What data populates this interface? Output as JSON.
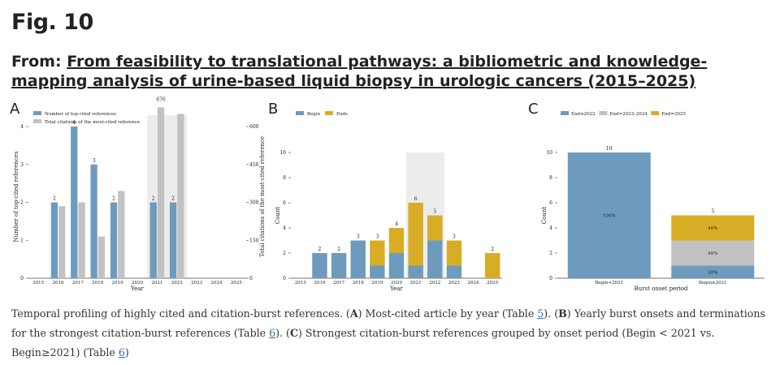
{
  "figure": {
    "title": "Fig. 10",
    "from_label": "From: ",
    "article_title": "From feasibility to translational pathways: a bibliometric and knowledge-mapping analysis of urine-based liquid biopsy in urologic cancers (2015–2025)"
  },
  "caption": {
    "text1": "Temporal profiling of highly cited and citation-burst references. (",
    "A": "A",
    "text2": ") Most-cited article by year (Table ",
    "t5": "5",
    "text3": "). (",
    "B": "B",
    "text4": ") Yearly burst onsets and terminations for the strongest citation-burst references (Table ",
    "t6a": "6",
    "text5": "). (",
    "C": "C",
    "text6": ") Strongest citation-burst references grouped by onset period (Begin < 2021 vs. Begin≥2021) (Table ",
    "t6b": "6",
    "text7": ")"
  },
  "colors": {
    "blue": "#6e9bbd",
    "gold": "#d8ad26",
    "grey": "#c2c2c2",
    "highlight": "#ececec"
  },
  "chart_data": [
    {
      "panel": "A",
      "type": "bar",
      "categories": [
        "2015",
        "2016",
        "2017",
        "2018",
        "2019",
        "2020",
        "2021",
        "2022",
        "2023",
        "2024",
        "2025"
      ],
      "series": [
        {
          "name": "Number of top-cited references",
          "values": [
            0,
            2,
            4,
            3,
            2,
            0,
            2,
            2,
            0,
            0,
            0
          ],
          "axis": "left"
        },
        {
          "name": "Total citations of the most-cited reference",
          "values": [
            0,
            285,
            300,
            165,
            345,
            0,
            676,
            650,
            0,
            0,
            0
          ],
          "axis": "right"
        }
      ],
      "labels": [
        "",
        "2",
        "4",
        "3",
        "2",
        "",
        "2",
        "2",
        "",
        "",
        ""
      ],
      "top_label": "676",
      "xlabel": "Year",
      "ylabel": "Number of top-cited references",
      "ylabel_right": "Total citations of the most-cited reference",
      "ylim": [
        0,
        4.3
      ],
      "ylim_right": [
        0,
        645
      ],
      "yticks": [
        "0",
        "1",
        "2",
        "3",
        "4"
      ],
      "yticks_right": [
        "0",
        "150",
        "300",
        "450",
        "600"
      ],
      "highlight": [
        "2021",
        "2022"
      ]
    },
    {
      "panel": "B",
      "type": "bar",
      "categories": [
        "2015",
        "2016",
        "2017",
        "2018",
        "2019",
        "2020",
        "2021",
        "2022",
        "2023",
        "2024",
        "2025"
      ],
      "series": [
        {
          "name": "Begin",
          "values": [
            0,
            2,
            2,
            3,
            1,
            2,
            1,
            3,
            1,
            0,
            0
          ]
        },
        {
          "name": "Ends",
          "values": [
            0,
            0,
            0,
            0,
            2,
            2,
            5,
            2,
            2,
            0,
            2
          ]
        }
      ],
      "labels": [
        "",
        "2",
        "2",
        "3",
        "3",
        "4",
        "6",
        "5",
        "3",
        "",
        "2"
      ],
      "xlabel": "Year",
      "ylabel": "Count",
      "ylim": [
        0,
        10
      ],
      "yticks": [
        "0",
        "2",
        "4",
        "6",
        "8",
        "10"
      ],
      "highlight": [
        "2021",
        "2022"
      ]
    },
    {
      "panel": "C",
      "type": "bar",
      "categories": [
        "Begin<2021",
        "Begin≥2021"
      ],
      "series": [
        {
          "name": "End≤2022",
          "values": [
            10,
            1
          ]
        },
        {
          "name": "End=2023–2024",
          "values": [
            0,
            2
          ]
        },
        {
          "name": "End=2025",
          "values": [
            0,
            2
          ]
        }
      ],
      "totals": [
        "10",
        "5"
      ],
      "segment_labels": [
        [
          "100%"
        ],
        [
          "20%",
          "40%",
          "40%"
        ]
      ],
      "xlabel": "Burst onset period",
      "ylabel": "Count",
      "ylim": [
        0,
        10
      ],
      "yticks": [
        "0",
        "2",
        "4",
        "6",
        "8",
        "10"
      ]
    }
  ]
}
